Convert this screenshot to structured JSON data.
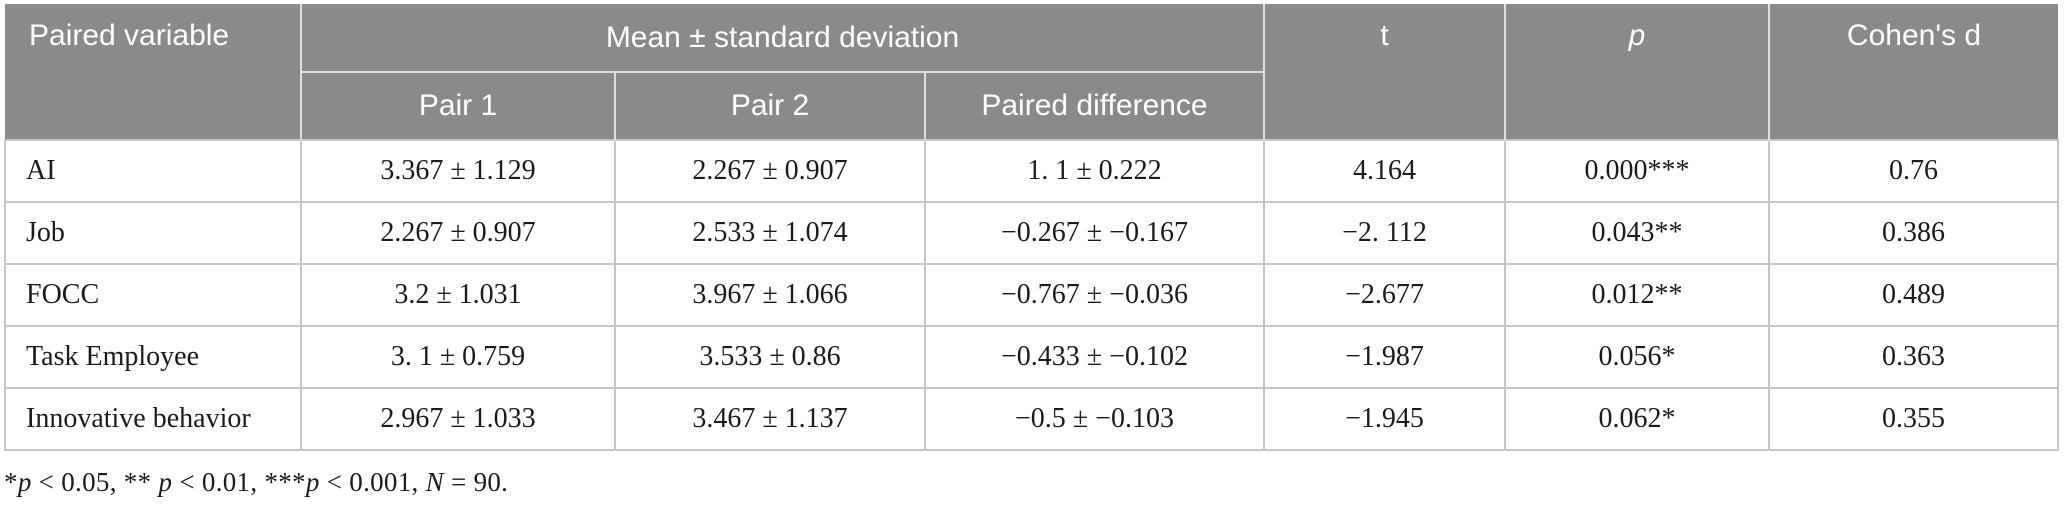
{
  "table": {
    "header": {
      "paired_variable": "Paired variable",
      "mean_sd_group": "Mean ± standard deviation",
      "pair1": "Pair 1",
      "pair2": "Pair 2",
      "paired_difference": "Paired difference",
      "t": "t",
      "p": "p",
      "cohens_d": "Cohen's d"
    },
    "rows": [
      {
        "variable": "AI",
        "pair1": "3.367 ± 1.129",
        "pair2": "2.267 ± 0.907",
        "paired_difference": "1. 1 ± 0.222",
        "t": "4.164",
        "p": "0.000***",
        "cohens_d": "0.76"
      },
      {
        "variable": "Job",
        "pair1": "2.267 ± 0.907",
        "pair2": "2.533 ± 1.074",
        "paired_difference": "−0.267 ± −0.167",
        "t": "−2. 112",
        "p": "0.043**",
        "cohens_d": "0.386"
      },
      {
        "variable": "FOCC",
        "pair1": "3.2 ± 1.031",
        "pair2": "3.967 ± 1.066",
        "paired_difference": "−0.767 ± −0.036",
        "t": "−2.677",
        "p": "0.012**",
        "cohens_d": "0.489"
      },
      {
        "variable": "Task Employee",
        "pair1": "3. 1 ± 0.759",
        "pair2": "3.533 ± 0.86",
        "paired_difference": "−0.433 ± −0.102",
        "t": "−1.987",
        "p": "0.056*",
        "cohens_d": "0.363"
      },
      {
        "variable": "Innovative behavior",
        "pair1": "2.967 ± 1.033",
        "pair2": "3.467 ± 1.137",
        "paired_difference": "−0.5 ± −0.103",
        "t": "−1.945",
        "p": "0.062*",
        "cohens_d": "0.355"
      }
    ],
    "footnote_text": "*p < 0.05, ** p < 0.01, ***p < 0.001, N = 90.",
    "footnote_segments": [
      {
        "text": "*",
        "italic": false
      },
      {
        "text": "p",
        "italic": true
      },
      {
        "text": " < 0.05, ** ",
        "italic": false
      },
      {
        "text": "p",
        "italic": true
      },
      {
        "text": " < 0.01, ***",
        "italic": false
      },
      {
        "text": "p",
        "italic": true
      },
      {
        "text": " < 0.001, ",
        "italic": false
      },
      {
        "text": "N",
        "italic": true
      },
      {
        "text": " = 90.",
        "italic": false
      }
    ]
  },
  "colors": {
    "header_bg": "#8a8a8a",
    "header_text": "#ffffff",
    "header_divider": "#dedede",
    "body_grid": "#c6c6c6",
    "body_text": "#1b1b1b",
    "page_bg": "#ffffff"
  }
}
